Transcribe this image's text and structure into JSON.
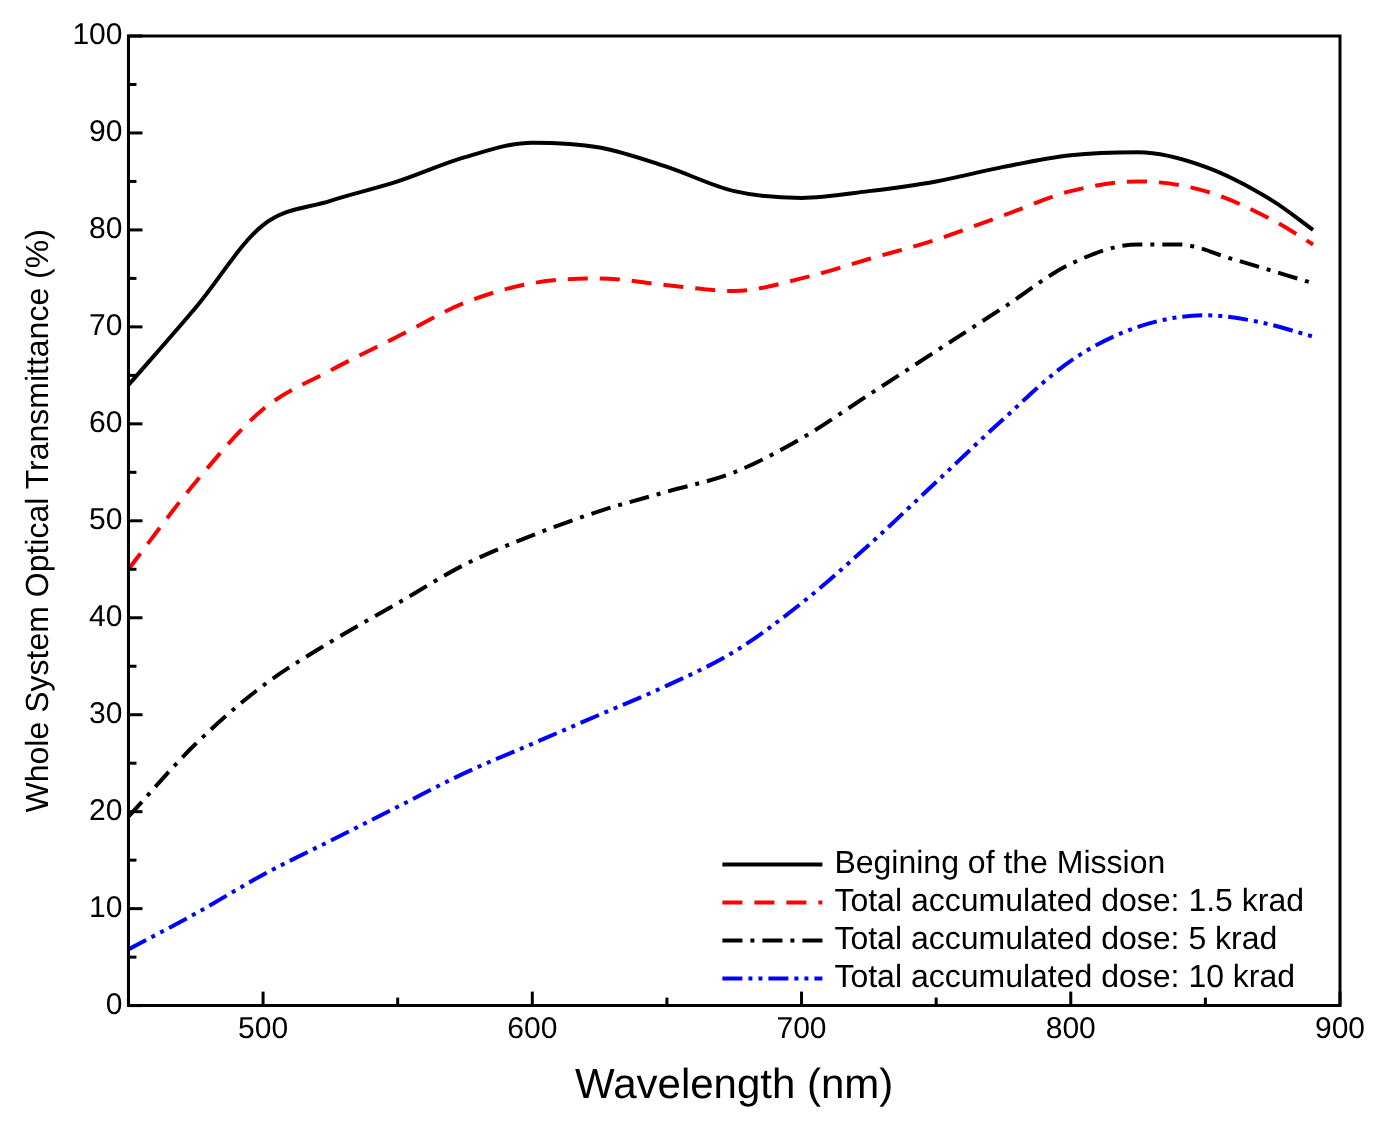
{
  "chart_data": {
    "type": "line",
    "xlabel": "Wavelength (nm)",
    "ylabel": "Whole System Optical Transmittance (%)",
    "xlim": [
      450,
      900
    ],
    "ylim": [
      0,
      100
    ],
    "xticks": [
      {
        "value": 450,
        "label": null
      },
      500,
      {
        "value": 550,
        "label": null
      },
      600,
      {
        "value": 650,
        "label": null
      },
      700,
      {
        "value": 750,
        "label": null
      },
      800,
      {
        "value": 850,
        "label": null
      },
      900
    ],
    "yticks": [
      0,
      {
        "value": 5,
        "label": null
      },
      10,
      {
        "value": 15,
        "label": null
      },
      20,
      {
        "value": 25,
        "label": null
      },
      30,
      {
        "value": 35,
        "label": null
      },
      40,
      {
        "value": 45,
        "label": null
      },
      50,
      {
        "value": 55,
        "label": null
      },
      60,
      {
        "value": 65,
        "label": null
      },
      70,
      {
        "value": 75,
        "label": null
      },
      80,
      {
        "value": 85,
        "label": null
      },
      90,
      {
        "value": 95,
        "label": null
      },
      100
    ],
    "grid": false,
    "legend": "bottom right",
    "marker": "none",
    "series": [
      {
        "name": "Begining of the Mission",
        "color": "#000000",
        "line_style": "solid",
        "x": [
          450,
          475,
          500,
          525,
          550,
          575,
          600,
          625,
          650,
          675,
          700,
          725,
          750,
          775,
          800,
          825,
          850,
          875,
          890
        ],
        "values": [
          64,
          72,
          80.5,
          83,
          85,
          87.5,
          89,
          88.5,
          86.5,
          84,
          83.3,
          84,
          85,
          86.5,
          87.7,
          88,
          86.5,
          83,
          80
        ]
      },
      {
        "name": "Total accumulated dose: 1.5 krad",
        "color": "#ff0000",
        "line_style": "dashed",
        "x": [
          450,
          475,
          500,
          525,
          550,
          575,
          600,
          625,
          650,
          675,
          700,
          725,
          750,
          775,
          800,
          825,
          850,
          875,
          890
        ],
        "values": [
          45,
          54,
          61.5,
          65.5,
          69,
          72.5,
          74.5,
          75,
          74.3,
          73.7,
          75,
          77,
          79,
          81.5,
          84,
          85,
          84,
          81,
          78.5
        ]
      },
      {
        "name": "Total accumulated dose: 5 krad",
        "color": "#000000",
        "line_style": "dashdot",
        "x": [
          450,
          475,
          500,
          525,
          550,
          575,
          600,
          625,
          650,
          675,
          700,
          725,
          750,
          775,
          800,
          825,
          840,
          860,
          890
        ],
        "values": [
          19.5,
          27,
          33,
          37.5,
          41.5,
          45.5,
          48.5,
          51,
          53,
          55,
          58.5,
          63,
          67.5,
          72,
          76.5,
          78.5,
          78.5,
          77,
          74.5
        ]
      },
      {
        "name": "Total accumulated dose: 10 krad",
        "color": "#0000ff",
        "line_style": "dashdotdot",
        "x": [
          450,
          475,
          500,
          525,
          550,
          575,
          600,
          625,
          650,
          675,
          700,
          725,
          750,
          775,
          800,
          825,
          850,
          870,
          890
        ],
        "values": [
          5.8,
          9.5,
          13.5,
          17,
          20.5,
          24,
          27,
          30,
          33,
          36.5,
          41.5,
          47.5,
          54,
          60.5,
          66.5,
          70,
          71.2,
          70.5,
          69
        ]
      }
    ]
  }
}
